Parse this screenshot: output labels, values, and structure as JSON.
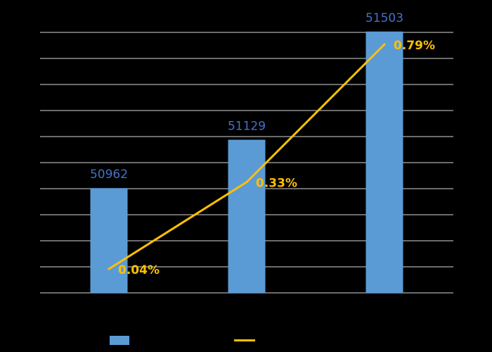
{
  "chart_data": {
    "type": "bar",
    "categories": [
      "",
      "",
      ""
    ],
    "series": [
      {
        "type": "bar",
        "values": [
          50962,
          51129,
          51503
        ],
        "data_labels": [
          "50962",
          "51129",
          "51503"
        ],
        "color": "#5B9BD5",
        "label_color": "#4472C4"
      },
      {
        "type": "line",
        "values": [
          0.04,
          0.33,
          0.79
        ],
        "data_labels": [
          "0.04%",
          "0.33%",
          "0.79%"
        ],
        "unit": "%",
        "color": "#FFC000",
        "label_color": "#FFC000"
      }
    ],
    "bar_axis": {
      "ylim": [
        50600,
        51500
      ],
      "gridlines": 10
    },
    "line_axis": {
      "ylim": [
        -0.04,
        0.83
      ]
    },
    "title": "",
    "xlabel": "",
    "ylabel": "",
    "grid": true,
    "legend": "bottom",
    "colors": {
      "background": "#000000",
      "grid": "#D9D9D9"
    }
  }
}
